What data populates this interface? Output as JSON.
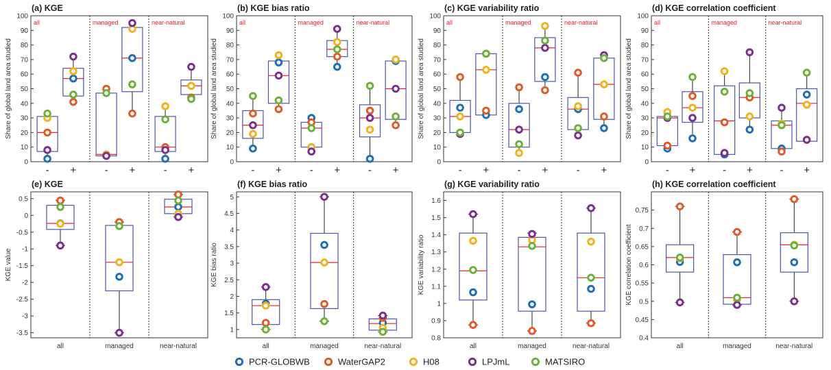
{
  "chart_data": {
    "type": "box",
    "legend": {
      "placement": "bottom-center",
      "entries": [
        {
          "name": "PCR-GLOBWB",
          "color": "#1f6fb5"
        },
        {
          "name": "WaterGAP2",
          "color": "#e05a2a"
        },
        {
          "name": "H08",
          "color": "#f2b21d"
        },
        {
          "name": "LPJmL",
          "color": "#7b2f8f"
        },
        {
          "name": "MATSIRO",
          "color": "#6cb13a"
        }
      ]
    },
    "colors": {
      "box": "#4a55b0",
      "median": "#e8202a",
      "divider": "#333333",
      "group_label": "#e8202a"
    },
    "panels": [
      {
        "id": "a",
        "title": "(a) KGE",
        "kind": "sign",
        "ylabel": "Share of global land area studied",
        "ylim": [
          0,
          100
        ],
        "yticks": [
          0,
          10,
          20,
          30,
          40,
          50,
          60,
          70,
          80,
          90,
          100
        ],
        "groups": [
          "all",
          "managed",
          "near-natural"
        ],
        "signs": [
          "-",
          "+",
          "-",
          "+",
          "-",
          "+"
        ],
        "boxes": [
          {
            "q1": 7,
            "median": 20,
            "q3": 31,
            "wlo": 2,
            "whi": 33,
            "models": [
              2,
              20,
              30,
              8,
              33
            ]
          },
          {
            "q1": 45,
            "median": 57,
            "q3": 64,
            "wlo": 41,
            "whi": 72,
            "models": [
              57,
              41,
              62,
              72,
              46
            ]
          },
          {
            "q1": 4,
            "median": 5,
            "q3": 47,
            "wlo": 4,
            "whi": 50,
            "models": [
              4,
              50,
              5,
              4,
              47
            ]
          },
          {
            "q1": 48,
            "median": 71,
            "q3": 92,
            "wlo": 33,
            "whi": 95,
            "models": [
              71,
              33,
              91,
              95,
              53
            ]
          },
          {
            "q1": 7,
            "median": 10,
            "q3": 31,
            "wlo": 2,
            "whi": 38,
            "models": [
              2,
              10,
              38,
              8,
              29
            ]
          },
          {
            "q1": 46,
            "median": 52,
            "q3": 56,
            "wlo": 43,
            "whi": 65,
            "models": [
              52,
              44,
              52,
              65,
              43
            ]
          }
        ]
      },
      {
        "id": "b",
        "title": "(b) KGE bias ratio",
        "kind": "sign",
        "ylabel": "Share of global land area studied",
        "ylim": [
          0,
          100
        ],
        "yticks": [
          0,
          10,
          20,
          30,
          40,
          50,
          60,
          70,
          80,
          90,
          100
        ],
        "groups": [
          "all",
          "managed",
          "near-natural"
        ],
        "signs": [
          "-",
          "+",
          "-",
          "+",
          "-",
          "+"
        ],
        "boxes": [
          {
            "q1": 16,
            "median": 25,
            "q3": 35,
            "wlo": 9,
            "whi": 45,
            "models": [
              9,
              33,
              19,
              25,
              45
            ]
          },
          {
            "q1": 40,
            "median": 59,
            "q3": 69,
            "wlo": 36,
            "whi": 73,
            "models": [
              68,
              36,
              73,
              59,
              42
            ]
          },
          {
            "q1": 10,
            "median": 23,
            "q3": 27,
            "wlo": 7,
            "whi": 30,
            "models": [
              30,
              27,
              10,
              7,
              23
            ]
          },
          {
            "q1": 72,
            "median": 77,
            "q3": 83,
            "wlo": 65,
            "whi": 91,
            "models": [
              65,
              72,
              82,
              91,
              77
            ]
          },
          {
            "q1": 17,
            "median": 30,
            "q3": 39,
            "wlo": 2,
            "whi": 52,
            "models": [
              2,
              35,
              22,
              30,
              52
            ]
          },
          {
            "q1": 29,
            "median": 50,
            "q3": 69,
            "wlo": 25,
            "whi": 70,
            "models": [
              69,
              25,
              70,
              50,
              31
            ]
          }
        ]
      },
      {
        "id": "c",
        "title": "(c) KGE variability ratio",
        "kind": "sign",
        "ylabel": "Share of global land area studied",
        "ylim": [
          0,
          100
        ],
        "yticks": [
          0,
          10,
          20,
          30,
          40,
          50,
          60,
          70,
          80,
          90,
          100
        ],
        "groups": [
          "all",
          "managed",
          "near-natural"
        ],
        "signs": [
          "-",
          "+",
          "-",
          "+",
          "-",
          "+"
        ],
        "boxes": [
          {
            "q1": 20,
            "median": 31,
            "q3": 42,
            "wlo": 19,
            "whi": 58,
            "models": [
              37,
              58,
              31,
              19,
              20
            ]
          },
          {
            "q1": 32,
            "median": 63,
            "q3": 74,
            "wlo": 31,
            "whi": 74,
            "models": [
              32,
              35,
              63,
              74,
              74
            ]
          },
          {
            "q1": 10,
            "median": 22,
            "q3": 40,
            "wlo": 6,
            "whi": 51,
            "models": [
              36,
              51,
              6,
              22,
              12
            ]
          },
          {
            "q1": 55,
            "median": 78,
            "q3": 85,
            "wlo": 49,
            "whi": 93,
            "models": [
              58,
              49,
              93,
              78,
              83
            ]
          },
          {
            "q1": 22,
            "median": 36,
            "q3": 44,
            "wlo": 18,
            "whi": 61,
            "models": [
              36,
              61,
              38,
              18,
              23
            ]
          },
          {
            "q1": 29,
            "median": 53,
            "q3": 71,
            "wlo": 23,
            "whi": 73,
            "models": [
              23,
              31,
              53,
              73,
              71
            ]
          }
        ]
      },
      {
        "id": "d",
        "title": "(d) KGE correlation coefficient",
        "kind": "sign",
        "ylabel": "Share of global land area studied",
        "ylim": [
          0,
          100
        ],
        "yticks": [
          0,
          10,
          20,
          30,
          40,
          50,
          60,
          70,
          80,
          90,
          100
        ],
        "groups": [
          "all",
          "managed",
          "near-natural"
        ],
        "signs": [
          "-",
          "+",
          "-",
          "+",
          "-",
          "+"
        ],
        "boxes": [
          {
            "q1": 11,
            "median": 30,
            "q3": 31,
            "wlo": 9,
            "whi": 34,
            "models": [
              9,
              11,
              34,
              30,
              31
            ]
          },
          {
            "q1": 27,
            "median": 37,
            "q3": 48,
            "wlo": 16,
            "whi": 58,
            "models": [
              16,
              45,
              37,
              30,
              58
            ]
          },
          {
            "q1": 5,
            "median": 28,
            "q3": 52,
            "wlo": 5,
            "whi": 62,
            "models": [
              5,
              27,
              62,
              6,
              48
            ]
          },
          {
            "q1": 30,
            "median": 44,
            "q3": 54,
            "wlo": 22,
            "whi": 75,
            "models": [
              22,
              44,
              31,
              75,
              47
            ]
          },
          {
            "q1": 9,
            "median": 25,
            "q3": 28,
            "wlo": 7,
            "whi": 37,
            "models": [
              9,
              7,
              26,
              37,
              25
            ]
          },
          {
            "q1": 14,
            "median": 40,
            "q3": 50,
            "wlo": 14,
            "whi": 61,
            "models": [
              46,
              15,
              39,
              15,
              61
            ]
          }
        ]
      },
      {
        "id": "e",
        "title": "(e) KGE",
        "kind": "group",
        "ylabel": "KGE value",
        "ylim": [
          -3.65,
          0.7
        ],
        "yticks": [
          -3.5,
          -3,
          -2.5,
          -2,
          -1.5,
          -1,
          -0.5,
          0,
          0.5
        ],
        "ytick_labels": [
          "-3.5",
          "-3",
          "-2.5",
          "-2",
          "-1.5",
          "-1",
          "-0.5",
          "0",
          "0.5"
        ],
        "groups": [
          "all",
          "managed",
          "near-natural"
        ],
        "boxes": [
          {
            "q1": -0.42,
            "median": -0.24,
            "q3": 0.3,
            "wlo": -0.9,
            "whi": 0.45,
            "models": [
              -0.24,
              0.44,
              -0.25,
              -0.9,
              0.25
            ]
          },
          {
            "q1": -2.25,
            "median": -1.4,
            "q3": -0.3,
            "wlo": -3.5,
            "whi": -0.2,
            "models": [
              -1.83,
              -0.2,
              -1.4,
              -3.5,
              -0.32
            ]
          },
          {
            "q1": 0.05,
            "median": 0.25,
            "q3": 0.48,
            "wlo": -0.05,
            "whi": 0.62,
            "models": [
              0.25,
              0.62,
              0.05,
              -0.05,
              0.44
            ]
          }
        ]
      },
      {
        "id": "f",
        "title": "(f) KGE bias ratio",
        "kind": "group",
        "ylabel": "KGE bias ratio",
        "ylim": [
          0.75,
          5.15
        ],
        "yticks": [
          1,
          1.5,
          2,
          2.5,
          3,
          3.5,
          4,
          4.5,
          5
        ],
        "ytick_labels": [
          "1",
          "1.5",
          "2",
          "2.5",
          "3",
          "3.5",
          "4",
          "4.5",
          "5"
        ],
        "groups": [
          "all",
          "managed",
          "near-natural"
        ],
        "boxes": [
          {
            "q1": 1.15,
            "median": 1.72,
            "q3": 1.9,
            "wlo": 1.0,
            "whi": 2.28,
            "models": [
              1.78,
              1.2,
              1.72,
              2.28,
              1.0
            ]
          },
          {
            "q1": 1.63,
            "median": 3.02,
            "q3": 3.9,
            "wlo": 1.25,
            "whi": 5.0,
            "models": [
              3.55,
              1.77,
              3.02,
              5.0,
              1.25
            ]
          },
          {
            "q1": 0.98,
            "median": 1.18,
            "q3": 1.32,
            "wlo": 0.93,
            "whi": 1.42,
            "models": [
              1.2,
              1.35,
              1.05,
              1.42,
              0.93
            ]
          }
        ]
      },
      {
        "id": "g",
        "title": "(g) KGE variability ratio",
        "kind": "group",
        "ylabel": "KGE variability ratio",
        "ylim": [
          0.8,
          1.65
        ],
        "yticks": [
          0.8,
          0.9,
          1,
          1.1,
          1.2,
          1.3,
          1.4,
          1.5,
          1.6
        ],
        "ytick_labels": [
          "0.8",
          "0.9",
          "1",
          "1.1",
          "1.2",
          "1.3",
          "1.4",
          "1.5",
          "1.6"
        ],
        "groups": [
          "all",
          "managed",
          "near-natural"
        ],
        "boxes": [
          {
            "q1": 1.02,
            "median": 1.19,
            "q3": 1.41,
            "wlo": 0.875,
            "whi": 1.52,
            "models": [
              1.065,
              0.875,
              1.365,
              1.52,
              1.195
            ]
          },
          {
            "q1": 0.955,
            "median": 1.33,
            "q3": 1.385,
            "wlo": 0.84,
            "whi": 1.41,
            "models": [
              0.995,
              0.84,
              1.37,
              1.405,
              1.335
            ]
          },
          {
            "q1": 0.955,
            "median": 1.15,
            "q3": 1.41,
            "wlo": 0.885,
            "whi": 1.555,
            "models": [
              1.085,
              0.885,
              1.36,
              1.555,
              1.15
            ]
          }
        ]
      },
      {
        "id": "h",
        "title": "(h) KGE correlation coefficient",
        "kind": "group",
        "ylabel": "KGE correlation coefficient",
        "ylim": [
          0.4,
          0.8
        ],
        "yticks": [
          0.4,
          0.45,
          0.5,
          0.55,
          0.6,
          0.65,
          0.7,
          0.75
        ],
        "ytick_labels": [
          "0.4",
          "0.45",
          "0.5",
          "0.55",
          "0.6",
          "0.65",
          "0.7",
          "0.75"
        ],
        "groups": [
          "all",
          "managed",
          "near-natural"
        ],
        "boxes": [
          {
            "q1": 0.58,
            "median": 0.62,
            "q3": 0.655,
            "wlo": 0.497,
            "whi": 0.76,
            "models": [
              0.608,
              0.76,
              0.618,
              0.497,
              0.62
            ]
          },
          {
            "q1": 0.492,
            "median": 0.51,
            "q3": 0.628,
            "wlo": 0.49,
            "whi": 0.69,
            "models": [
              0.607,
              0.69,
              0.505,
              0.49,
              0.51
            ]
          },
          {
            "q1": 0.58,
            "median": 0.655,
            "q3": 0.688,
            "wlo": 0.5,
            "whi": 0.78,
            "models": [
              0.607,
              0.78,
              0.655,
              0.5,
              0.653
            ]
          }
        ]
      }
    ]
  }
}
